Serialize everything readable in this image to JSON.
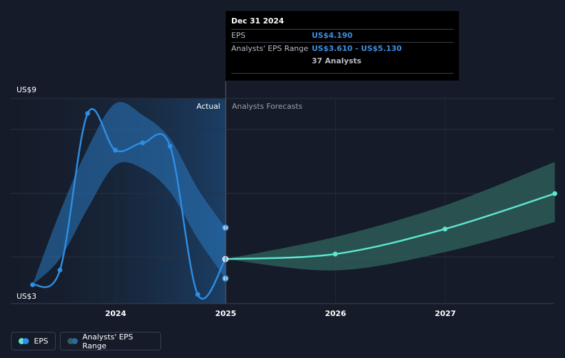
{
  "chart_data": {
    "type": "line",
    "y_top_label": "US$9",
    "y_bottom_label": "US$3",
    "ylim": [
      3,
      9
    ],
    "x_ticks": [
      "2024",
      "2025",
      "2026",
      "2027"
    ],
    "region_labels": {
      "actual": "Actual",
      "forecast": "Analysts Forecasts"
    },
    "series": [
      {
        "name": "EPS",
        "points": [
          {
            "date": "2023-03-31",
            "value": 3.42
          },
          {
            "date": "2023-06-30",
            "value": 3.86
          },
          {
            "date": "2023-09-30",
            "value": 8.55
          },
          {
            "date": "2023-12-31",
            "value": 7.45
          },
          {
            "date": "2024-03-31",
            "value": 7.67
          },
          {
            "date": "2024-06-30",
            "value": 7.57
          },
          {
            "date": "2024-09-30",
            "value": 3.13
          },
          {
            "date": "2024-12-31",
            "value": 4.19
          }
        ]
      },
      {
        "name": "EPS forecast",
        "points": [
          {
            "date": "2024-12-31",
            "value": 4.19
          },
          {
            "date": "2025-12-31",
            "value": 4.34
          },
          {
            "date": "2026-12-31",
            "value": 5.09
          },
          {
            "date": "2027-12-31",
            "value": 6.15
          }
        ]
      }
    ],
    "eps_range_actual": [
      {
        "date": "2023-03-31",
        "low": 3.42,
        "high": 3.42
      },
      {
        "date": "2023-06-30",
        "low": 4.2,
        "high": 5.6
      },
      {
        "date": "2023-09-30",
        "low": 5.7,
        "high": 7.5
      },
      {
        "date": "2023-12-31",
        "low": 7.0,
        "high": 8.85
      },
      {
        "date": "2024-03-31",
        "low": 6.9,
        "high": 8.5
      },
      {
        "date": "2024-06-30",
        "low": 6.2,
        "high": 7.8
      },
      {
        "date": "2024-09-30",
        "low": 4.8,
        "high": 6.3
      },
      {
        "date": "2024-12-31",
        "low": 3.61,
        "high": 5.13
      }
    ],
    "eps_range_forecast": [
      {
        "date": "2024-12-31",
        "low": 4.19,
        "high": 4.19
      },
      {
        "date": "2025-12-31",
        "low": 3.85,
        "high": 4.85
      },
      {
        "date": "2026-12-31",
        "low": 4.4,
        "high": 5.8
      },
      {
        "date": "2027-12-31",
        "low": 5.3,
        "high": 7.1
      }
    ],
    "legend": [
      "EPS",
      "Analysts' EPS Range"
    ],
    "colors": {
      "eps": "#2d8ee3",
      "forecast": "#5ee6cf",
      "range_actual": "#2a78c0",
      "range_forecast": "#2e5f5a"
    }
  },
  "tooltip": {
    "date": "Dec 31 2024",
    "rows": [
      {
        "label": "EPS",
        "value": "US$4.190"
      },
      {
        "label": "Analysts' EPS Range",
        "value": "US$3.610 - US$5.130"
      }
    ],
    "analysts": "37 Analysts"
  },
  "legend": {
    "eps_label": "EPS",
    "range_label": "Analysts' EPS Range"
  }
}
